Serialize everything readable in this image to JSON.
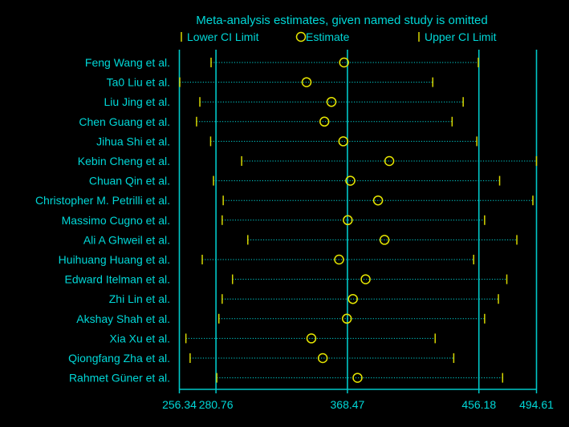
{
  "chart_data": {
    "type": "forest",
    "title": "Meta-analysis estimates, given named study is omitted",
    "legend": {
      "lower": "Lower CI Limit",
      "estimate": "Estimate",
      "upper": "Upper CI Limit",
      "placement": "top"
    },
    "x_ticks": [
      "256.34",
      "280.76",
      "368.47",
      "456.18",
      "494.61"
    ],
    "x_tick_values": [
      256.34,
      280.76,
      368.47,
      456.18,
      494.61
    ],
    "xlim": [
      256.34,
      494.61
    ],
    "reference_lines": [
      256.34,
      280.76,
      368.47,
      456.18,
      494.61
    ],
    "studies": [
      {
        "name": "Feng Wang et al.",
        "lower": 277.5,
        "estimate": 366.2,
        "upper": 455.8
      },
      {
        "name": "Ta0 Liu et al.",
        "lower": 256.6,
        "estimate": 341.2,
        "upper": 425.4
      },
      {
        "name": "Liu Jing et al.",
        "lower": 270.0,
        "estimate": 357.8,
        "upper": 445.7
      },
      {
        "name": "Chen Guang et al.",
        "lower": 267.8,
        "estimate": 353.1,
        "upper": 438.3
      },
      {
        "name": "Jihua Shi et al.",
        "lower": 277.2,
        "estimate": 365.7,
        "upper": 454.8
      },
      {
        "name": "Kebin Cheng et al.",
        "lower": 297.9,
        "estimate": 396.4,
        "upper": 494.6
      },
      {
        "name": "Chuan Qin et al.",
        "lower": 279.1,
        "estimate": 370.4,
        "upper": 470.0
      },
      {
        "name": "Christopher M. Petrilli et al.",
        "lower": 285.6,
        "estimate": 388.9,
        "upper": 492.2
      },
      {
        "name": "Massimo Cugno et al.",
        "lower": 284.9,
        "estimate": 368.7,
        "upper": 460.0
      },
      {
        "name": "Ali A Ghweil et al.",
        "lower": 302.0,
        "estimate": 393.2,
        "upper": 481.5
      },
      {
        "name": "Huihuang Huang et al.",
        "lower": 271.6,
        "estimate": 362.9,
        "upper": 452.7
      },
      {
        "name": "Edward Itelman et al.",
        "lower": 291.8,
        "estimate": 380.6,
        "upper": 474.8
      },
      {
        "name": "Zhi Lin et al.",
        "lower": 284.9,
        "estimate": 372.1,
        "upper": 469.2
      },
      {
        "name": "Akshay Shah et al.",
        "lower": 282.7,
        "estimate": 368.1,
        "upper": 460.0
      },
      {
        "name": "Xia Xu et al.",
        "lower": 260.7,
        "estimate": 344.4,
        "upper": 427.0
      },
      {
        "name": "Qiongfang Zha et al.",
        "lower": 263.5,
        "estimate": 352.0,
        "upper": 439.4
      },
      {
        "name": "Rahmet Güner et al.",
        "lower": 281.3,
        "estimate": 375.2,
        "upper": 472.0
      }
    ]
  },
  "colors": {
    "background": "#000000",
    "text": "#00d7d7",
    "reference_line": "#00c8c8",
    "ci": "#d7d700",
    "estimate": "#e6e600",
    "dotted": "#00d7d7"
  }
}
